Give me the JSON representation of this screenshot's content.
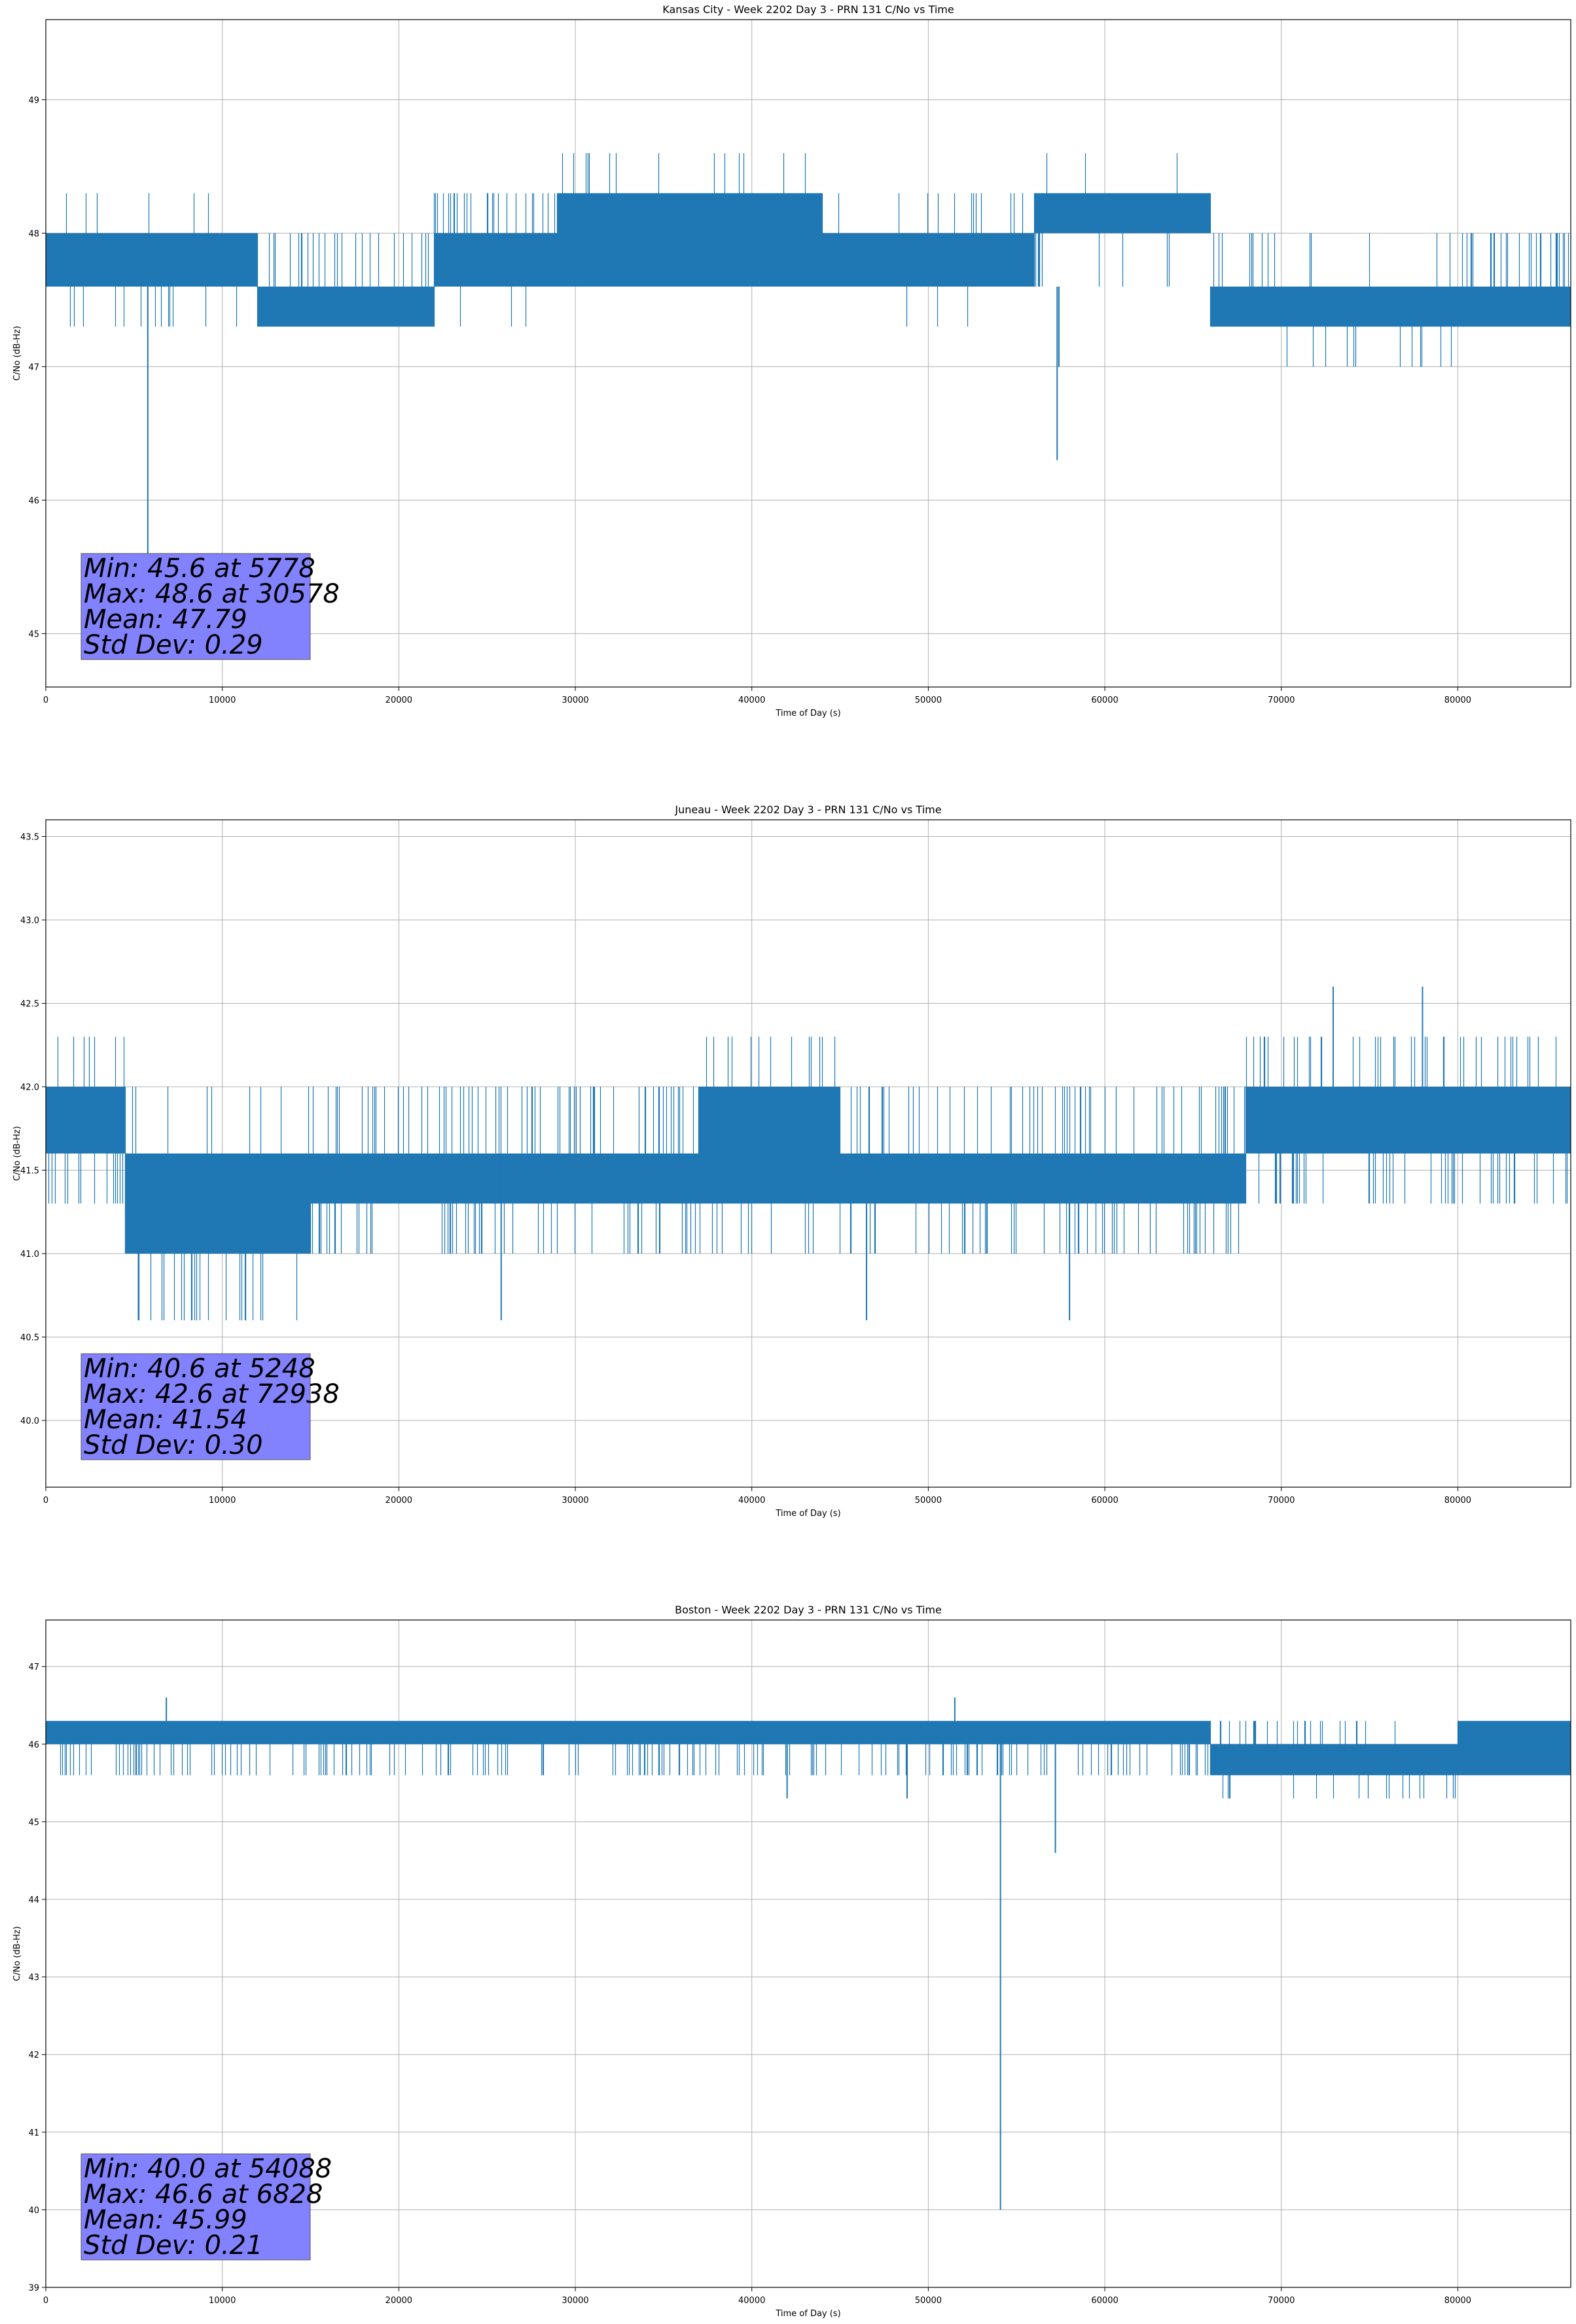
{
  "chart_data": [
    {
      "type": "line",
      "title": "Kansas City - Week 2202 Day 3 - PRN 131 C/No vs Time",
      "xlabel": "Time of Day (s)",
      "ylabel": "C/No (dB-Hz)",
      "xlim": [
        0,
        86400
      ],
      "ylim": [
        44.6,
        49.6
      ],
      "xticks": [
        "0",
        "10000",
        "20000",
        "30000",
        "40000",
        "50000",
        "60000",
        "70000",
        "80000"
      ],
      "xtick_values": [
        0,
        10000,
        20000,
        30000,
        40000,
        50000,
        60000,
        70000,
        80000
      ],
      "yticks": [
        "45",
        "46",
        "47",
        "48",
        "49"
      ],
      "ytick_values": [
        45,
        46,
        47,
        48,
        49
      ],
      "grid": true,
      "series_color": "#1f77b4",
      "stats_box_color": "#8080ff",
      "stats": [
        "Min: 45.6 at 5778",
        "Max: 48.6 at 30578",
        "Mean: 47.79",
        "Std Dev: 0.29"
      ],
      "segments": [
        {
          "x0": 0,
          "x1": 12000,
          "lo": 47.6,
          "hi": 48.0,
          "outLo": 47.3,
          "outHi": 48.3,
          "loRate": 0.06,
          "hiRate": 0.01
        },
        {
          "x0": 12000,
          "x1": 22000,
          "lo": 47.3,
          "hi": 47.6,
          "outLo": 47.3,
          "outHi": 48.0,
          "loRate": 0.0,
          "hiRate": 0.08
        },
        {
          "x0": 22000,
          "x1": 29000,
          "lo": 47.6,
          "hi": 48.0,
          "outLo": 47.3,
          "outHi": 48.3,
          "loRate": 0.03,
          "hiRate": 0.1
        },
        {
          "x0": 29000,
          "x1": 44000,
          "lo": 47.6,
          "hi": 48.3,
          "outLo": 47.6,
          "outHi": 48.6,
          "loRate": 0.0,
          "hiRate": 0.03
        },
        {
          "x0": 44000,
          "x1": 56000,
          "lo": 47.6,
          "hi": 48.0,
          "outLo": 47.3,
          "outHi": 48.3,
          "loRate": 0.02,
          "hiRate": 0.05
        },
        {
          "x0": 56000,
          "x1": 66000,
          "lo": 48.0,
          "hi": 48.3,
          "outLo": 47.6,
          "outHi": 48.6,
          "loRate": 0.05,
          "hiRate": 0.02
        },
        {
          "x0": 66000,
          "x1": 70000,
          "lo": 47.3,
          "hi": 47.6,
          "outLo": 47.3,
          "outHi": 48.0,
          "loRate": 0.0,
          "hiRate": 0.1
        },
        {
          "x0": 70000,
          "x1": 80000,
          "lo": 47.3,
          "hi": 47.6,
          "outLo": 47.0,
          "outHi": 48.0,
          "loRate": 0.02,
          "hiRate": 0.02
        },
        {
          "x0": 80000,
          "x1": 86400,
          "lo": 47.3,
          "hi": 47.6,
          "outLo": 47.3,
          "outHi": 48.0,
          "loRate": 0.0,
          "hiRate": 0.12
        }
      ],
      "spikes": [
        {
          "x": 5778,
          "y": 45.6
        },
        {
          "x": 57300,
          "y": 46.3
        },
        {
          "x": 57400,
          "y": 47.0
        }
      ]
    },
    {
      "type": "line",
      "title": "Juneau - Week 2202 Day 3 - PRN 131 C/No vs Time",
      "xlabel": "Time of Day (s)",
      "ylabel": "C/No (dB-Hz)",
      "xlim": [
        0,
        86400
      ],
      "ylim": [
        39.6,
        43.6
      ],
      "xticks": [
        "0",
        "10000",
        "20000",
        "30000",
        "40000",
        "50000",
        "60000",
        "70000",
        "80000"
      ],
      "xtick_values": [
        0,
        10000,
        20000,
        30000,
        40000,
        50000,
        60000,
        70000,
        80000
      ],
      "yticks": [
        "40.0",
        "40.5",
        "41.0",
        "41.5",
        "42.0",
        "42.5",
        "43.0",
        "43.5"
      ],
      "ytick_values": [
        40.0,
        40.5,
        41.0,
        41.5,
        42.0,
        42.5,
        43.0,
        43.5
      ],
      "grid": true,
      "series_color": "#1f77b4",
      "stats_box_color": "#8080ff",
      "stats": [
        "Min: 40.6 at 5248",
        "Max: 42.6 at 72938",
        "Mean: 41.54",
        "Std Dev: 0.30"
      ],
      "segments": [
        {
          "x0": 0,
          "x1": 4500,
          "lo": 41.6,
          "hi": 42.0,
          "outLo": 41.3,
          "outHi": 42.3,
          "loRate": 0.08,
          "hiRate": 0.06
        },
        {
          "x0": 4500,
          "x1": 15000,
          "lo": 41.0,
          "hi": 41.6,
          "outLo": 40.6,
          "outHi": 42.0,
          "loRate": 0.05,
          "hiRate": 0.03
        },
        {
          "x0": 15000,
          "x1": 37000,
          "lo": 41.3,
          "hi": 41.6,
          "outLo": 41.0,
          "outHi": 42.0,
          "loRate": 0.08,
          "hiRate": 0.1
        },
        {
          "x0": 37000,
          "x1": 45000,
          "lo": 41.3,
          "hi": 42.0,
          "outLo": 41.0,
          "outHi": 42.3,
          "loRate": 0.05,
          "hiRate": 0.05
        },
        {
          "x0": 45000,
          "x1": 68000,
          "lo": 41.3,
          "hi": 41.6,
          "outLo": 41.0,
          "outHi": 42.0,
          "loRate": 0.08,
          "hiRate": 0.1
        },
        {
          "x0": 68000,
          "x1": 86400,
          "lo": 41.6,
          "hi": 42.0,
          "outLo": 41.3,
          "outHi": 42.3,
          "loRate": 0.07,
          "hiRate": 0.07
        }
      ],
      "spikes": [
        {
          "x": 5248,
          "y": 40.6
        },
        {
          "x": 25800,
          "y": 40.6
        },
        {
          "x": 46500,
          "y": 40.6
        },
        {
          "x": 58000,
          "y": 40.6
        },
        {
          "x": 72938,
          "y": 42.6
        },
        {
          "x": 78000,
          "y": 42.6
        }
      ]
    },
    {
      "type": "line",
      "title": "Boston - Week 2202 Day 3 - PRN 131 C/No vs Time",
      "xlabel": "Time of Day (s)",
      "ylabel": "C/No (dB-Hz)",
      "xlim": [
        0,
        86400
      ],
      "ylim": [
        39.0,
        47.6
      ],
      "xticks": [
        "0",
        "10000",
        "20000",
        "30000",
        "40000",
        "50000",
        "60000",
        "70000",
        "80000"
      ],
      "xtick_values": [
        0,
        10000,
        20000,
        30000,
        40000,
        50000,
        60000,
        70000,
        80000
      ],
      "yticks": [
        "39",
        "40",
        "41",
        "42",
        "43",
        "44",
        "45",
        "46",
        "47"
      ],
      "ytick_values": [
        39,
        40,
        41,
        42,
        43,
        44,
        45,
        46,
        47
      ],
      "grid": true,
      "series_color": "#1f77b4",
      "stats_box_color": "#8080ff",
      "stats": [
        "Min: 40.0 at 54088",
        "Max: 46.6 at 6828",
        "Mean: 45.99",
        "Std Dev: 0.21"
      ],
      "segments": [
        {
          "x0": 0,
          "x1": 66000,
          "lo": 46.0,
          "hi": 46.3,
          "outLo": 45.6,
          "outHi": 46.3,
          "loRate": 0.1,
          "hiRate": 0.0
        },
        {
          "x0": 66000,
          "x1": 80000,
          "lo": 45.6,
          "hi": 46.0,
          "outLo": 45.3,
          "outHi": 46.3,
          "loRate": 0.03,
          "hiRate": 0.05
        },
        {
          "x0": 80000,
          "x1": 86400,
          "lo": 45.6,
          "hi": 46.3,
          "outLo": 45.6,
          "outHi": 46.3,
          "loRate": 0.0,
          "hiRate": 0.0
        }
      ],
      "spikes": [
        {
          "x": 6828,
          "y": 46.6
        },
        {
          "x": 51500,
          "y": 46.6
        },
        {
          "x": 54088,
          "y": 40.0
        },
        {
          "x": 57200,
          "y": 44.6
        },
        {
          "x": 42000,
          "y": 45.3
        },
        {
          "x": 48800,
          "y": 45.3
        }
      ]
    }
  ]
}
